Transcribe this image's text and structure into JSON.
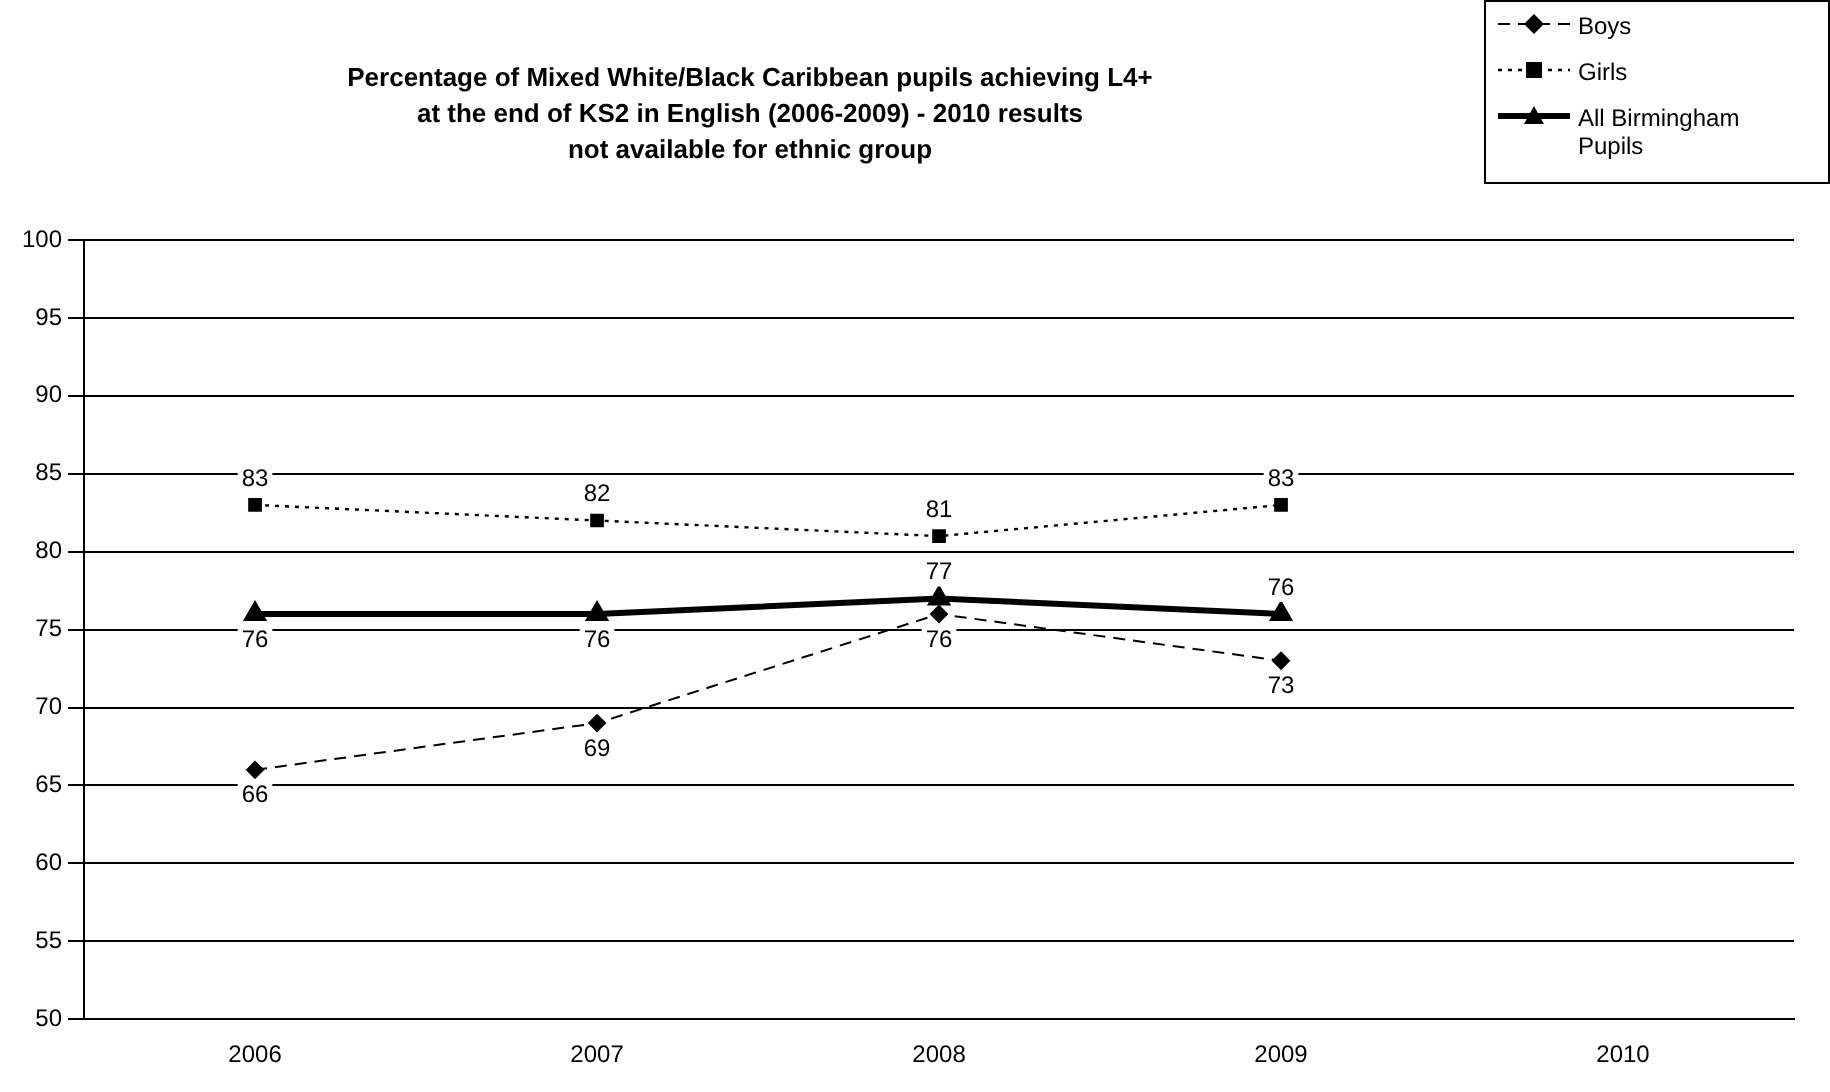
{
  "chart_data": {
    "type": "line",
    "title": "Percentage of Mixed White/Black Caribbean pupils achieving L4+\nat the end of KS2 in English (2006-2009) - 2010 results\nnot available for ethnic group",
    "categories": [
      "2006",
      "2007",
      "2008",
      "2009",
      "2010"
    ],
    "series": [
      {
        "name": "Boys",
        "color": "#000000",
        "marker": "diamond",
        "line_style": "dashed",
        "values": [
          66,
          69,
          76,
          73,
          null
        ]
      },
      {
        "name": "Girls",
        "color": "#000000",
        "marker": "square",
        "line_style": "dotted",
        "values": [
          83,
          82,
          81,
          83,
          null
        ]
      },
      {
        "name": "All Birmingham Pupils",
        "color": "#000000",
        "marker": "triangle",
        "line_style": "solid",
        "values": [
          76,
          76,
          77,
          76,
          null
        ]
      }
    ],
    "ylim": [
      50,
      100
    ],
    "yticks": [
      50,
      55,
      60,
      65,
      70,
      75,
      80,
      85,
      90,
      95,
      100
    ],
    "grid": "y",
    "legend": "top right",
    "data_labels": true
  }
}
